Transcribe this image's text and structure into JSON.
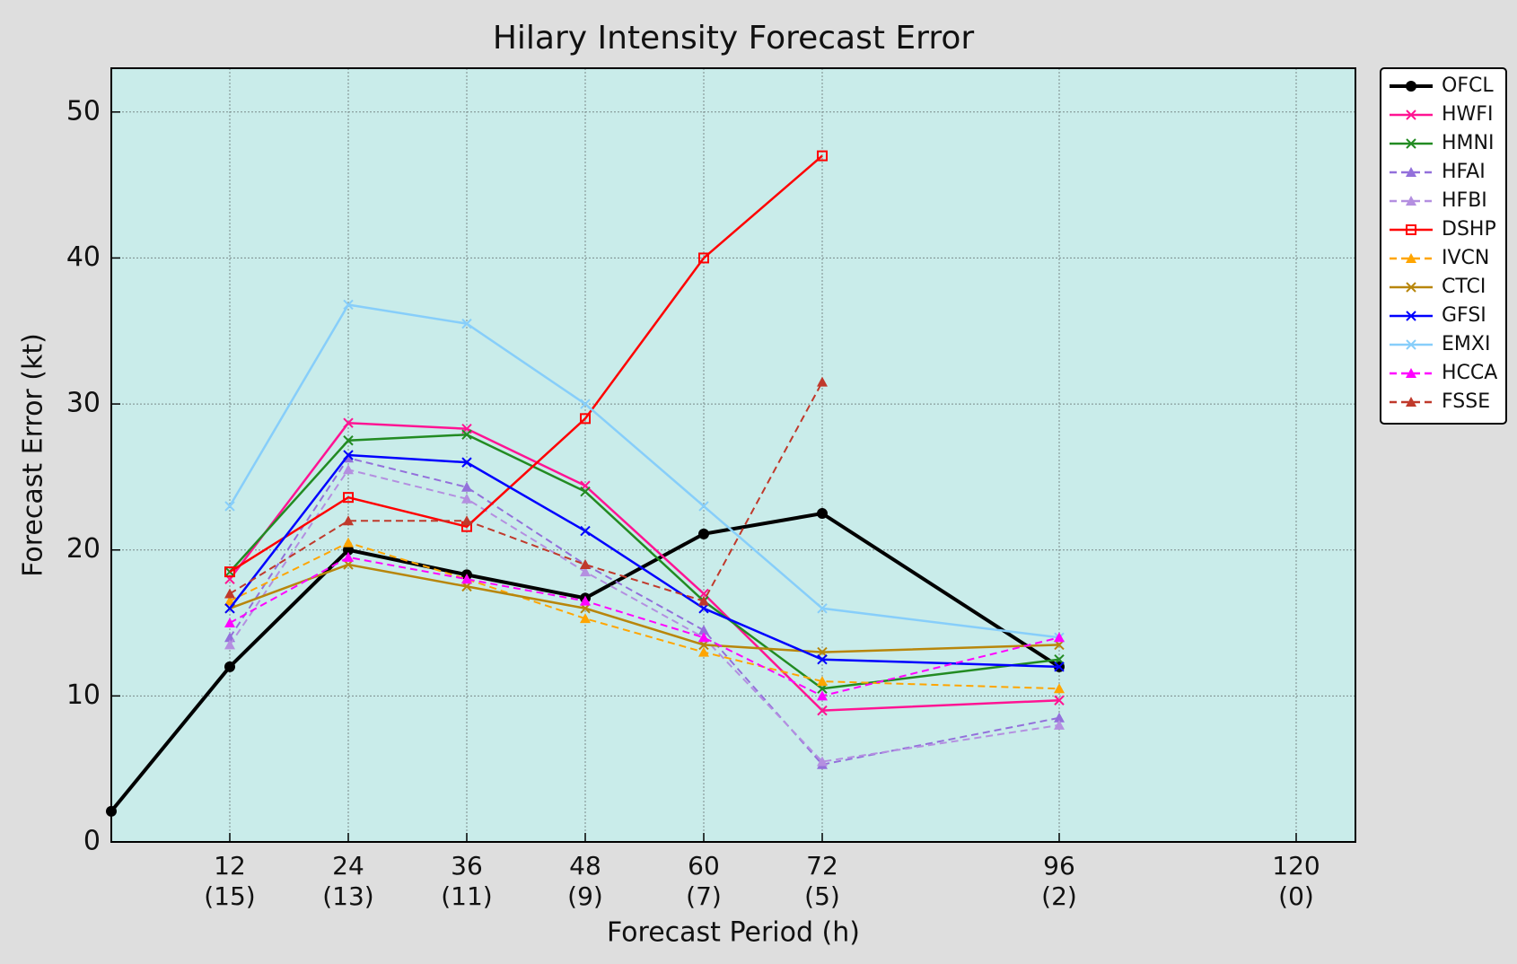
{
  "chart_data": {
    "type": "line",
    "title": "Hilary Intensity Forecast Error",
    "x_label": "Forecast Period (h)",
    "y_label": "Forecast Error (kt)",
    "x": [
      0,
      12,
      24,
      36,
      48,
      60,
      72,
      96,
      120
    ],
    "xlim": [
      0,
      126
    ],
    "xticks": [
      {
        "value": 12,
        "label": "12\n(15)"
      },
      {
        "value": 24,
        "label": "24\n(13)"
      },
      {
        "value": 36,
        "label": "36\n(11)"
      },
      {
        "value": 48,
        "label": "48\n(9)"
      },
      {
        "value": 60,
        "label": "60\n(7)"
      },
      {
        "value": 72,
        "label": "72\n(5)"
      },
      {
        "value": 96,
        "label": "96\n(2)"
      },
      {
        "value": 120,
        "label": "120\n(0)"
      }
    ],
    "ylim": [
      0,
      53
    ],
    "yticks": [
      0,
      10,
      20,
      30,
      40,
      50
    ],
    "grid": true,
    "legend": "outside right",
    "plot_background": "#c9ecea",
    "series": [
      {
        "name": "OFCL",
        "color": "#000000",
        "marker": "circle",
        "dash": false,
        "values": [
          2.1,
          12.0,
          20.0,
          18.3,
          16.7,
          21.1,
          22.5,
          12.0,
          null
        ]
      },
      {
        "name": "HWFI",
        "color": "#ff1493",
        "marker": "x",
        "dash": false,
        "values": [
          null,
          18.0,
          28.7,
          28.3,
          24.4,
          17.0,
          9.0,
          9.7,
          null
        ]
      },
      {
        "name": "HMNI",
        "color": "#228b22",
        "marker": "x",
        "dash": false,
        "values": [
          null,
          18.5,
          27.5,
          27.9,
          24.0,
          16.5,
          10.5,
          12.5,
          null
        ]
      },
      {
        "name": "HFAI",
        "color": "#9370db",
        "marker": "triangle",
        "dash": true,
        "values": [
          null,
          14.0,
          26.3,
          24.3,
          19.0,
          14.5,
          5.3,
          8.5,
          null
        ]
      },
      {
        "name": "HFBI",
        "color": "#b48fe0",
        "marker": "triangle",
        "dash": true,
        "values": [
          null,
          13.5,
          25.5,
          23.5,
          18.5,
          14.0,
          5.5,
          8.0,
          null
        ]
      },
      {
        "name": "DSHP",
        "color": "#ff0000",
        "marker": "square",
        "dash": false,
        "values": [
          null,
          18.5,
          23.6,
          21.6,
          29.0,
          40.0,
          47.0,
          null,
          null
        ]
      },
      {
        "name": "IVCN",
        "color": "#ffa500",
        "marker": "triangle",
        "dash": true,
        "values": [
          null,
          16.5,
          20.5,
          18.0,
          15.3,
          13.0,
          11.0,
          10.5,
          null
        ]
      },
      {
        "name": "CTCI",
        "color": "#b8860b",
        "marker": "x",
        "dash": false,
        "values": [
          null,
          16.0,
          19.0,
          17.5,
          16.0,
          13.5,
          13.0,
          13.5,
          null
        ]
      },
      {
        "name": "GFSI",
        "color": "#0000ff",
        "marker": "x",
        "dash": false,
        "values": [
          null,
          16.0,
          26.5,
          26.0,
          21.3,
          16.0,
          12.5,
          12.0,
          null
        ]
      },
      {
        "name": "EMXI",
        "color": "#87cefa",
        "marker": "x",
        "dash": false,
        "values": [
          null,
          23.0,
          36.8,
          35.5,
          30.0,
          23.0,
          16.0,
          14.0,
          null
        ]
      },
      {
        "name": "HCCA",
        "color": "#ff00ff",
        "marker": "triangle",
        "dash": true,
        "values": [
          null,
          15.0,
          19.5,
          18.0,
          16.5,
          14.0,
          10.0,
          14.0,
          null
        ]
      },
      {
        "name": "FSSE",
        "color": "#c0392b",
        "marker": "triangle",
        "dash": true,
        "values": [
          null,
          17.0,
          22.0,
          22.0,
          19.0,
          16.5,
          31.5,
          null,
          null
        ]
      }
    ]
  }
}
